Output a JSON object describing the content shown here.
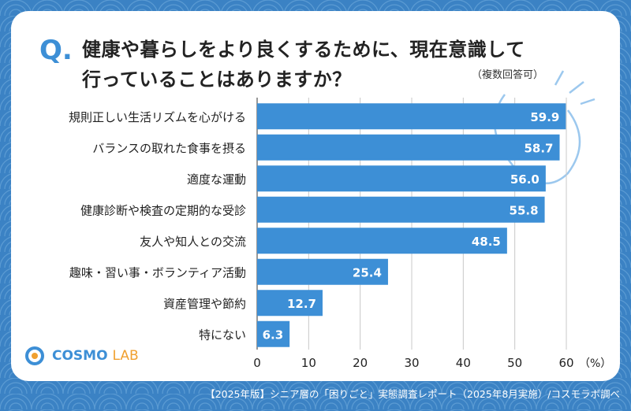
{
  "header": {
    "q_mark": "Q.",
    "title_line1": "健康や暮らしをより良くするために、現在意識して",
    "title_line2": "行っていることはありますか？",
    "note": "（複数回答可）"
  },
  "chart_data": {
    "type": "bar",
    "orientation": "horizontal",
    "categories": [
      "規則正しい生活リズムを心がける",
      "バランスの取れた食事を摂る",
      "適度な運動",
      "健康診断や検査の定期的な受診",
      "友人や知人との交流",
      "趣味・習い事・ボランティア活動",
      "資産管理や節約",
      "特にない"
    ],
    "values": [
      59.9,
      58.7,
      56.0,
      55.8,
      48.5,
      25.4,
      12.7,
      6.3
    ],
    "value_labels": [
      "59.9",
      "58.7",
      "56.0",
      "55.8",
      "48.5",
      "25.4",
      "12.7",
      "6.3"
    ],
    "xlim": [
      0,
      60
    ],
    "ticks": [
      "0",
      "10",
      "20",
      "30",
      "40",
      "50",
      "60"
    ],
    "unit_label": "（%）",
    "grid": true,
    "bar_color": "#3d8fd6"
  },
  "logo": {
    "brand": "COSMO",
    "suffix": "LAB"
  },
  "footer": {
    "source": "【2025年版】シニア層の「困りごと」実態調査レポート（2025年8月実施）/コスモラボ調べ"
  }
}
